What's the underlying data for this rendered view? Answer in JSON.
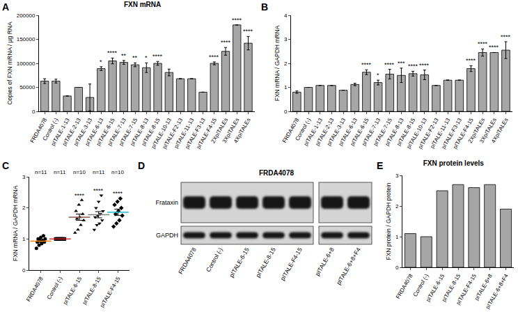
{
  "chart_data": [
    {
      "panel": "A",
      "type": "bar",
      "title": "FXN mRNA",
      "y_label": "Copies of FXN mRNA / µg RNA",
      "categories": [
        "FRDA4078",
        "Control (-)",
        "pITALE-1-13",
        "pITALE-2-13",
        "pITALE-3-13",
        "pITALE-6-13",
        "pITALE-6-15",
        "pITALE-7-13",
        "pITALE-7-15",
        "pITALE-8-13",
        "pITALE-8-15",
        "pITALE-10-13",
        "pITALE-F2-13",
        "pITALE-11-13",
        "pITALE-F3-13",
        "pITALE-F4-15",
        "2XpITALEs",
        "3XpITALEs",
        "4XpITALEs"
      ],
      "values": [
        63000,
        63000,
        32000,
        50000,
        29000,
        89000,
        105000,
        102000,
        97000,
        91000,
        100000,
        81000,
        68000,
        68000,
        40000,
        100000,
        125000,
        180000,
        142000
      ],
      "errors": [
        5000,
        4000,
        0,
        0,
        28000,
        4000,
        6000,
        4000,
        4000,
        10000,
        4000,
        7000,
        0,
        0,
        0,
        3000,
        8000,
        0,
        14000
      ],
      "annotations": [
        null,
        null,
        null,
        null,
        null,
        "*",
        "****",
        "**",
        "**",
        "*",
        "****",
        null,
        null,
        null,
        null,
        "****",
        "****",
        "****",
        "****"
      ],
      "color": "#a6a6a6",
      "ylim": [
        0,
        200000
      ],
      "yticks": [
        0,
        50000,
        100000,
        150000,
        200000
      ],
      "grid": false
    },
    {
      "panel": "B",
      "type": "bar",
      "y_label": "FXN mRNA / GAPDH mRNA",
      "categories": [
        "FRDA4078",
        "Control (-)",
        "pITALE-1-13",
        "pITALE-2-13",
        "pITALE-3-13",
        "pITALE-6-13",
        "pITALE-6-15",
        "pITALE-7-13",
        "pITALE-7-15",
        "pITALE-8-13",
        "pITALE-8-15",
        "pITALE-10-13",
        "pITALE-F2-13",
        "pITALE-11-13",
        "pITALE-F3-13",
        "pITALE-F4-15",
        "2XpITALEs",
        "3XpITALEs",
        "4XpITALEs"
      ],
      "values": [
        0.8,
        1.0,
        1.08,
        1.08,
        0.88,
        1.12,
        1.63,
        1.2,
        1.55,
        1.5,
        1.57,
        1.52,
        1.08,
        1.3,
        1.3,
        1.78,
        2.45,
        2.45,
        2.55
      ],
      "errors": [
        0.05,
        0,
        0,
        0,
        0,
        0.05,
        0.1,
        0.1,
        0.2,
        0.3,
        0.1,
        0.2,
        0,
        0,
        0,
        0.12,
        0.15,
        0,
        0.35
      ],
      "annotations": [
        null,
        null,
        null,
        null,
        null,
        null,
        "****",
        "*",
        "****",
        "***",
        "****",
        "****",
        null,
        null,
        null,
        "****",
        "****",
        "****",
        "****"
      ],
      "color": "#a6a6a6",
      "ylim": [
        0,
        4
      ],
      "yticks": [
        0,
        1,
        2,
        3,
        4
      ],
      "grid": false
    },
    {
      "panel": "C",
      "type": "scatter",
      "y_label": "FXN mRNA / GAPDH mRNA",
      "series": [
        {
          "name": "FRDA4078",
          "marker": "circle",
          "n_label": "n=11",
          "mean": 0.93,
          "error": 0.04,
          "annotation": null,
          "values": [
            0.7,
            0.8,
            0.85,
            0.9,
            0.9,
            0.95,
            0.95,
            1.0,
            1.0,
            1.05,
            1.1
          ]
        },
        {
          "name": "Control (-)",
          "marker": "square",
          "n_label": "n=11",
          "mean": 1.0,
          "error": 0,
          "annotation": null,
          "values": [
            1.0,
            1.0,
            1.0,
            1.0,
            1.0,
            1.0,
            1.0,
            1.0,
            1.0,
            1.0,
            1.0
          ]
        },
        {
          "name": "pITALE-6-15",
          "marker": "triangle-up",
          "n_label": "n=10",
          "mean": 1.7,
          "error": 0.1,
          "annotation": "****",
          "values": [
            1.2,
            1.3,
            1.45,
            1.6,
            1.65,
            1.7,
            1.8,
            1.9,
            2.1,
            2.25
          ]
        },
        {
          "name": "pITALE-8-15",
          "marker": "triangle-down",
          "n_label": "n=11",
          "mean": 1.78,
          "error": 0.1,
          "annotation": "****",
          "values": [
            1.3,
            1.45,
            1.5,
            1.6,
            1.7,
            1.75,
            1.8,
            1.9,
            2.0,
            2.2,
            2.4
          ]
        },
        {
          "name": "pITALE-F4-15",
          "marker": "diamond",
          "n_label": "n=10",
          "mean": 1.86,
          "error": 0.1,
          "annotation": "****",
          "values": [
            1.4,
            1.5,
            1.6,
            1.75,
            1.8,
            1.9,
            2.0,
            2.1,
            2.2,
            2.3
          ]
        }
      ],
      "color": "#000000",
      "ylim": [
        0,
        3
      ],
      "yticks": [
        0,
        1,
        2,
        3
      ],
      "grid": false
    },
    {
      "panel": "E",
      "type": "bar",
      "title": "FXN protein levels",
      "y_label": "FXN protein / GAPDH protein",
      "categories": [
        "FRDA4078",
        "Control (-)",
        "pITALE-6-15",
        "pITALE-8-15",
        "pITALE-F4-15",
        "pITALE-6+8",
        "pITALE-6+8+F4"
      ],
      "values": [
        1.1,
        1.0,
        2.5,
        2.7,
        2.6,
        2.7,
        1.9
      ],
      "color": "#a6a6a6",
      "ylim": [
        0,
        3
      ],
      "yticks": [
        0,
        1,
        2,
        3
      ],
      "grid": false
    }
  ],
  "blot": {
    "panel": "D",
    "title": "FRDA4078",
    "lane_groups": [
      [
        "FRDA4078",
        "Control (-)",
        "pITALE-6-15",
        "pITALE-8-15",
        "pITALE-F4-15"
      ],
      [
        "pITALE-6+8",
        "pITALE-6+8+F4"
      ]
    ],
    "rows": [
      "Frataxin",
      "GAPDH"
    ]
  }
}
